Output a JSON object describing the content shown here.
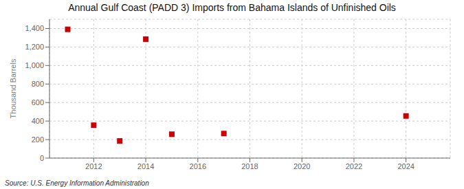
{
  "chart_data": {
    "type": "scatter",
    "title": "Annual Gulf Coast (PADD 3) Imports from Bahama Islands of Unfinished Oils",
    "ylabel": "Thousand Barrels",
    "annotations": [
      "Source: U.S. Energy Information Administration"
    ],
    "x": [
      2011,
      2012,
      2013,
      2014,
      2015,
      2017,
      2024
    ],
    "values": [
      1391,
      355,
      185,
      1285,
      258,
      265,
      455
    ],
    "color": "#cc0000",
    "marker": "square",
    "xlim": [
      2010.3,
      2025.7
    ],
    "xticks": [
      2012,
      2014,
      2016,
      2018,
      2020,
      2022,
      2024
    ],
    "ylim": [
      0,
      1500
    ],
    "yticks": [
      0,
      200,
      400,
      600,
      800,
      {
        "value": 1000,
        "label": "1,000"
      },
      {
        "value": 1200,
        "label": "1,200"
      },
      {
        "value": 1400,
        "label": "1,400"
      }
    ],
    "grid": true
  }
}
